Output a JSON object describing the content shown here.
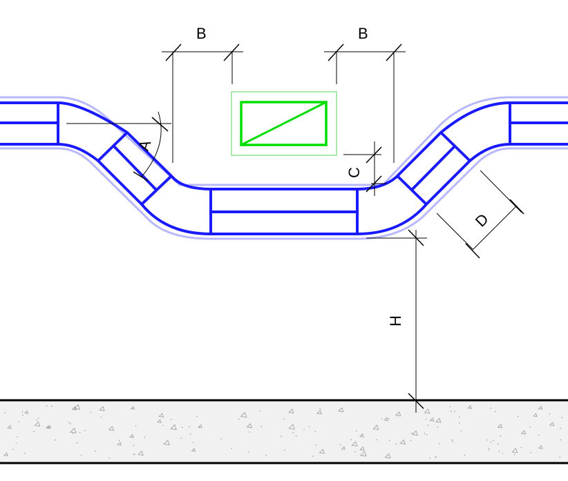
{
  "dimensions": {
    "b_left": "B",
    "b_right": "B",
    "a": "A",
    "c": "C",
    "d": "D",
    "h": "H"
  },
  "colors": {
    "duct": "#1a1aff",
    "duct_halo": "#b8b8ff",
    "obstacle": "#00dd00",
    "obstacle_halo": "#a8eaa8",
    "dimension": "#000000",
    "floor_fill": "#e8e8e8"
  }
}
